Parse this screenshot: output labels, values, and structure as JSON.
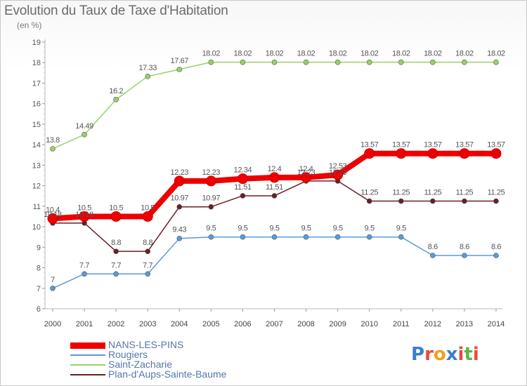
{
  "title": "Evolution du Taux de Taxe d'Habitation",
  "subtitle": "(en %)",
  "logo": {
    "text": "Proxiti",
    "colors": [
      "#3a7fd0",
      "#e94a3c",
      "#f0a020",
      "#3a7fd0",
      "#e94a3c",
      "#58b848",
      "#e94a3c"
    ]
  },
  "chart_data": {
    "type": "line",
    "title": "Evolution du Taux de Taxe d'Habitation",
    "ylabel": "(en %)",
    "xlabel": "",
    "x": [
      "2000",
      "2001",
      "2002",
      "2003",
      "2004",
      "2005",
      "2006",
      "2007",
      "2008",
      "2009",
      "2010",
      "2011",
      "2012",
      "2013",
      "2014"
    ],
    "ylim": [
      6,
      19
    ],
    "yticks": [
      6,
      7,
      8,
      9,
      10,
      11,
      12,
      13,
      14,
      15,
      16,
      17,
      18,
      19
    ],
    "grid": false,
    "legend_position": "bottom-left",
    "series": [
      {
        "name": "NANS-LES-PINS",
        "color": "#ee0000",
        "values": [
          10.4,
          10.5,
          10.5,
          10.5,
          12.23,
          12.23,
          12.34,
          12.4,
          12.4,
          12.53,
          13.57,
          13.57,
          13.57,
          13.57,
          13.57
        ],
        "labels": [
          "10.4",
          "10.5",
          "10.5",
          "10.5",
          "12.23",
          "12.23",
          "12.34",
          "12.4",
          "12.4",
          "12.53",
          "13.57",
          "13.57",
          "13.57",
          "13.57",
          "13.57"
        ]
      },
      {
        "name": "Rougiers",
        "color": "#5a9bd5",
        "values": [
          7,
          7.7,
          7.7,
          7.7,
          9.43,
          9.5,
          9.5,
          9.5,
          9.5,
          9.5,
          9.5,
          9.5,
          8.6,
          8.6,
          8.6
        ],
        "labels": [
          "7",
          "7.7",
          "7.7",
          "7.7",
          "9.43",
          "9.5",
          "9.5",
          "9.5",
          "9.5",
          "9.5",
          "9.5",
          "9.5",
          "8.6",
          "8.6",
          "8.6"
        ]
      },
      {
        "name": "Saint-Zacharie",
        "color": "#99d16a",
        "values": [
          13.8,
          14.49,
          16.2,
          17.33,
          17.67,
          18.02,
          18.02,
          18.02,
          18.02,
          18.02,
          18.02,
          18.02,
          18.02,
          18.02,
          18.02
        ],
        "labels": [
          "13.8",
          "14.49",
          "16.2",
          "17.33",
          "17.67",
          "18.02",
          "18.02",
          "18.02",
          "18.02",
          "18.02",
          "18.02",
          "18.02",
          "18.02",
          "18.02",
          "18.02"
        ]
      },
      {
        "name": "Plan-d'Aups-Sainte-Baume",
        "color": "#6b1f24",
        "values": [
          10.18,
          10.18,
          8.8,
          8.8,
          10.97,
          10.97,
          11.51,
          11.51,
          12.23,
          12.23,
          11.25,
          11.25,
          11.25,
          11.25,
          11.25
        ],
        "labels": [
          "10.18",
          "10.18",
          "8.8",
          "8.8",
          "10.97",
          "10.97",
          "11.51",
          "11.51",
          "12.23",
          "12.23",
          "11.25",
          "11.25",
          "11.25",
          "11.25",
          "11.25"
        ]
      }
    ]
  }
}
